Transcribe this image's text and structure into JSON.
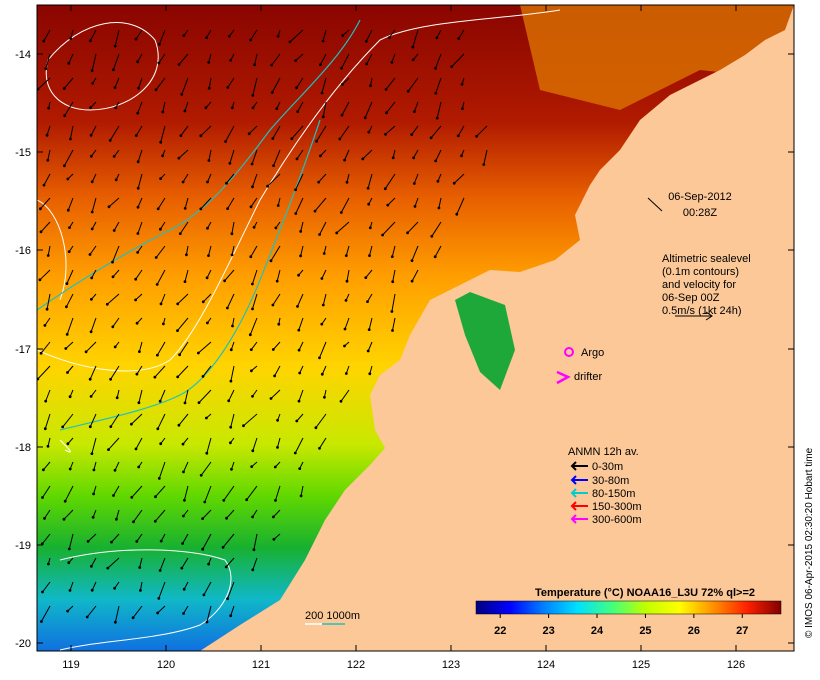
{
  "timestamp": {
    "date": "06-Sep-2012",
    "time": "00:28Z"
  },
  "altimetry_note": [
    "Altimetric sealevel",
    "(0.1m contours)",
    "and velocity for",
    "06-Sep 00Z",
    "0.5m/s (1kt 24h)"
  ],
  "markers": {
    "argo": "Argo",
    "drifter": "drifter"
  },
  "anmn": {
    "title": "ANMN 12h av.",
    "items": [
      {
        "label": "0-30m",
        "color": "#000000"
      },
      {
        "label": "30-80m",
        "color": "#0000ff"
      },
      {
        "label": "80-150m",
        "color": "#00cccc"
      },
      {
        "label": "150-300m",
        "color": "#ff0000"
      },
      {
        "label": "300-600m",
        "color": "#ff00ff"
      }
    ]
  },
  "depth_legend": {
    "label": "200  1000m"
  },
  "colorbar": {
    "title": "Temperature (°C) NOAA16_L3U 72% ql>=2",
    "ticks": [
      "22",
      "23",
      "24",
      "25",
      "26",
      "27"
    ],
    "range": [
      21.5,
      27.8
    ],
    "colors": [
      "#00007f",
      "#0000ff",
      "#0080ff",
      "#00e0ff",
      "#40ff80",
      "#c0ff00",
      "#ffff00",
      "#ff9000",
      "#ff2000",
      "#800000"
    ]
  },
  "axes": {
    "lon_labels": [
      "119",
      "120",
      "121",
      "122",
      "123",
      "124",
      "125",
      "126"
    ],
    "lat_labels": [
      "-14",
      "-15",
      "-16",
      "-17",
      "-18",
      "-19",
      "-20"
    ]
  },
  "credit": "© IMOS 06-Apr-2015 02:30:20 Hobart time",
  "colors": {
    "land": "#fcc898",
    "argo": "#ff00ff",
    "drifter": "#ff00ff"
  }
}
